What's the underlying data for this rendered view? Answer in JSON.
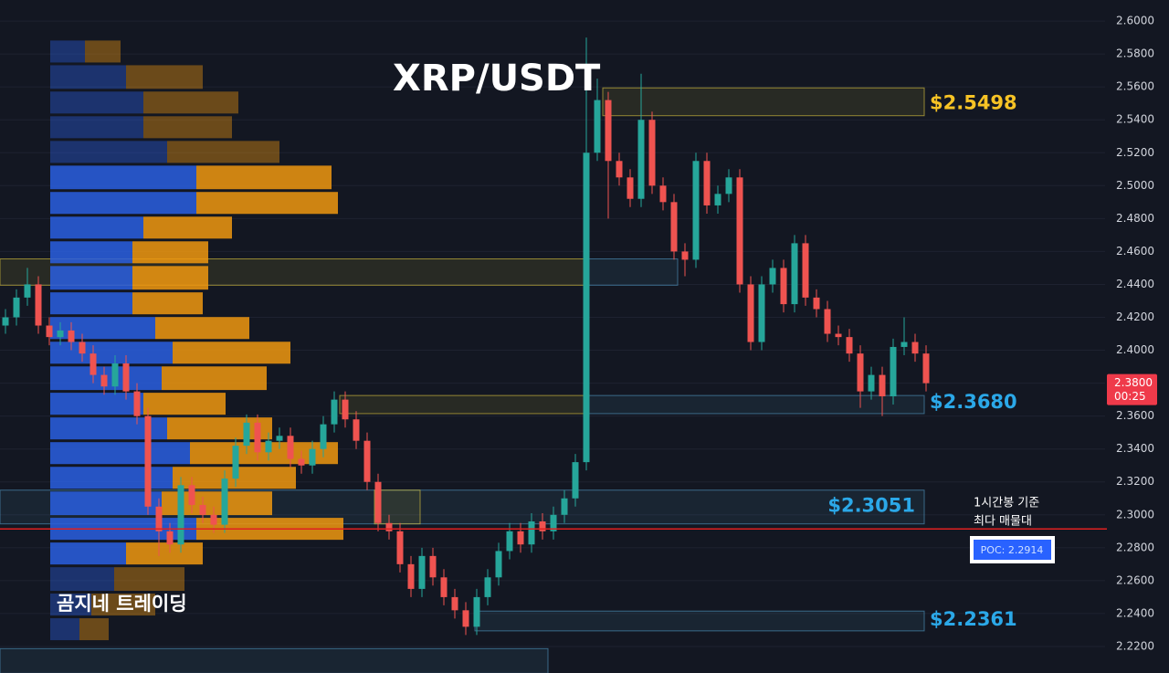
{
  "chart_data": {
    "type": "candlestick",
    "title": "XRP/USDT",
    "watermark": "곰지네 트레이딩",
    "ylim": [
      2.2039,
      2.6128
    ],
    "grid": true,
    "up_color": "#26a69a",
    "down_color": "#ef5350",
    "yticks": [
      {
        "value": 2.22,
        "label": "2.2200"
      },
      {
        "value": 2.24,
        "label": "2.2400"
      },
      {
        "value": 2.26,
        "label": "2.2600"
      },
      {
        "value": 2.28,
        "label": "2.2800"
      },
      {
        "value": 2.3,
        "label": "2.3000"
      },
      {
        "value": 2.32,
        "label": "2.3200"
      },
      {
        "value": 2.34,
        "label": "2.3400"
      },
      {
        "value": 2.36,
        "label": "2.3600"
      },
      {
        "value": 2.38,
        "label": "2.3800"
      },
      {
        "value": 2.4,
        "label": "2.4000"
      },
      {
        "value": 2.42,
        "label": "2.4200"
      },
      {
        "value": 2.44,
        "label": "2.4400"
      },
      {
        "value": 2.46,
        "label": "2.4600"
      },
      {
        "value": 2.48,
        "label": "2.4800"
      },
      {
        "value": 2.5,
        "label": "2.5000"
      },
      {
        "value": 2.52,
        "label": "2.5200"
      },
      {
        "value": 2.54,
        "label": "2.5400"
      },
      {
        "value": 2.56,
        "label": "2.5600"
      },
      {
        "value": 2.58,
        "label": "2.5800"
      },
      {
        "value": 2.6,
        "label": "2.6000"
      }
    ],
    "candles": {
      "open": [
        2.415,
        2.42,
        2.432,
        2.44,
        2.415,
        2.408,
        2.412,
        2.405,
        2.398,
        2.385,
        2.378,
        2.392,
        2.375,
        2.36,
        2.305,
        2.29,
        2.282,
        2.318,
        2.306,
        2.3,
        2.294,
        2.322,
        2.342,
        2.356,
        2.338,
        2.345,
        2.348,
        2.334,
        2.33,
        2.34,
        2.355,
        2.37,
        2.358,
        2.345,
        2.32,
        2.295,
        2.29,
        2.27,
        2.255,
        2.275,
        2.262,
        2.25,
        2.242,
        2.232,
        2.25,
        2.262,
        2.278,
        2.29,
        2.282,
        2.296,
        2.29,
        2.3,
        2.31,
        2.332,
        2.52,
        2.552,
        2.515,
        2.505,
        2.492,
        2.54,
        2.5,
        2.49,
        2.46,
        2.455,
        2.515,
        2.488,
        2.495,
        2.505,
        2.44,
        2.405,
        2.44,
        2.45,
        2.428,
        2.465,
        2.432,
        2.425,
        2.41,
        2.408,
        2.398,
        2.375,
        2.385,
        2.372,
        2.402,
        2.405,
        2.398
      ],
      "high": [
        2.425,
        2.437,
        2.45,
        2.445,
        2.42,
        2.417,
        2.417,
        2.41,
        2.403,
        2.39,
        2.397,
        2.397,
        2.38,
        2.365,
        2.31,
        2.295,
        2.323,
        2.323,
        2.311,
        2.305,
        2.327,
        2.347,
        2.361,
        2.361,
        2.35,
        2.353,
        2.353,
        2.339,
        2.345,
        2.36,
        2.375,
        2.375,
        2.363,
        2.35,
        2.325,
        2.3,
        2.295,
        2.275,
        2.28,
        2.28,
        2.267,
        2.255,
        2.247,
        2.255,
        2.267,
        2.283,
        2.295,
        2.295,
        2.301,
        2.301,
        2.305,
        2.315,
        2.337,
        2.59,
        2.565,
        2.557,
        2.52,
        2.51,
        2.568,
        2.545,
        2.505,
        2.495,
        2.465,
        2.52,
        2.52,
        2.5,
        2.51,
        2.51,
        2.445,
        2.445,
        2.455,
        2.455,
        2.47,
        2.47,
        2.437,
        2.43,
        2.415,
        2.413,
        2.403,
        2.39,
        2.39,
        2.407,
        2.42,
        2.41,
        2.403
      ],
      "low": [
        2.41,
        2.415,
        2.427,
        2.41,
        2.403,
        2.403,
        2.4,
        2.393,
        2.38,
        2.373,
        2.373,
        2.37,
        2.355,
        2.3,
        2.275,
        2.277,
        2.277,
        2.301,
        2.295,
        2.289,
        2.289,
        2.317,
        2.337,
        2.333,
        2.333,
        2.34,
        2.329,
        2.325,
        2.325,
        2.335,
        2.35,
        2.353,
        2.34,
        2.315,
        2.29,
        2.285,
        2.265,
        2.25,
        2.25,
        2.257,
        2.245,
        2.237,
        2.227,
        2.227,
        2.245,
        2.257,
        2.273,
        2.277,
        2.277,
        2.285,
        2.285,
        2.295,
        2.305,
        2.327,
        2.515,
        2.48,
        2.5,
        2.487,
        2.487,
        2.495,
        2.485,
        2.455,
        2.445,
        2.45,
        2.483,
        2.483,
        2.49,
        2.435,
        2.4,
        2.4,
        2.435,
        2.423,
        2.423,
        2.427,
        2.42,
        2.405,
        2.403,
        2.393,
        2.365,
        2.37,
        2.36,
        2.367,
        2.397,
        2.393,
        2.375
      ],
      "close": [
        2.42,
        2.432,
        2.44,
        2.415,
        2.408,
        2.412,
        2.405,
        2.398,
        2.385,
        2.378,
        2.392,
        2.375,
        2.36,
        2.305,
        2.29,
        2.282,
        2.318,
        2.306,
        2.3,
        2.294,
        2.322,
        2.342,
        2.356,
        2.338,
        2.345,
        2.348,
        2.334,
        2.33,
        2.34,
        2.355,
        2.37,
        2.358,
        2.345,
        2.32,
        2.295,
        2.29,
        2.27,
        2.255,
        2.275,
        2.262,
        2.25,
        2.242,
        2.232,
        2.25,
        2.262,
        2.278,
        2.29,
        2.282,
        2.296,
        2.29,
        2.3,
        2.31,
        2.332,
        2.52,
        2.552,
        2.515,
        2.505,
        2.492,
        2.54,
        2.5,
        2.49,
        2.46,
        2.455,
        2.515,
        2.488,
        2.495,
        2.505,
        2.44,
        2.405,
        2.44,
        2.45,
        2.428,
        2.465,
        2.432,
        2.425,
        2.41,
        2.408,
        2.398,
        2.375,
        2.385,
        2.372,
        2.402,
        2.405,
        2.398,
        2.38
      ]
    },
    "volume_profile": {
      "bins": [
        2.589,
        2.574,
        2.558,
        2.543,
        2.528,
        2.513,
        2.497,
        2.482,
        2.467,
        2.452,
        2.436,
        2.421,
        2.406,
        2.391,
        2.375,
        2.36,
        2.345,
        2.33,
        2.315,
        2.299,
        2.284,
        2.269,
        2.253,
        2.238,
        2.223
      ],
      "buy": [
        38,
        83,
        102,
        102,
        128,
        160,
        160,
        102,
        90,
        90,
        90,
        115,
        134,
        122,
        102,
        128,
        153,
        134,
        122,
        160,
        83,
        70,
        45,
        32
      ],
      "sell": [
        39,
        84,
        104,
        97,
        123,
        148,
        155,
        97,
        83,
        83,
        77,
        103,
        129,
        115,
        90,
        115,
        162,
        135,
        121,
        161,
        84,
        77,
        70,
        32
      ],
      "buy_color": "#2a5fe0",
      "sell_color": "#f0980f",
      "value_area": {
        "high": 2.513,
        "low": 2.269
      }
    },
    "zones": [
      {
        "high": 2.4555,
        "low": 2.4395,
        "color": "#c8b43c"
      },
      {
        "high": 2.4555,
        "low": 2.4395,
        "color": "#4a8ab0"
      },
      {
        "high": 2.5594,
        "low": 2.5425,
        "color": "#c8b43c"
      },
      {
        "high": 2.3725,
        "low": 2.3615,
        "color": "#c8b43c"
      },
      {
        "high": 2.3725,
        "low": 2.3615,
        "color": "#4a8ab0"
      },
      {
        "high": 2.315,
        "low": 2.2945,
        "color": "#4a8ab0"
      },
      {
        "high": 2.315,
        "low": 2.2945,
        "color": "#c8b43c"
      },
      {
        "high": 2.2415,
        "low": 2.2295,
        "color": "#4a8ab0"
      },
      {
        "high": 2.2187,
        "low": 2.2037,
        "color": "#4a8ab0"
      }
    ],
    "levels": [
      {
        "value": 2.5498,
        "label": "$2.5498",
        "color": "#f7c325"
      },
      {
        "value": 2.368,
        "label": "$2.3680",
        "color": "#2ba8e8"
      },
      {
        "value": 2.3051,
        "label": "$2.3051",
        "color": "#2ba8e8"
      },
      {
        "value": 2.2361,
        "label": "$2.2361",
        "color": "#2ba8e8"
      }
    ],
    "poc": {
      "value": 2.2914,
      "label": "POC: 2.2914",
      "color": "#e02020",
      "note": [
        "1시간봉 기준",
        "최다 매물대"
      ]
    },
    "last_price": {
      "value": 2.38,
      "label": "2.3800",
      "countdown": "00:25",
      "color": "#ef3a4a"
    }
  }
}
